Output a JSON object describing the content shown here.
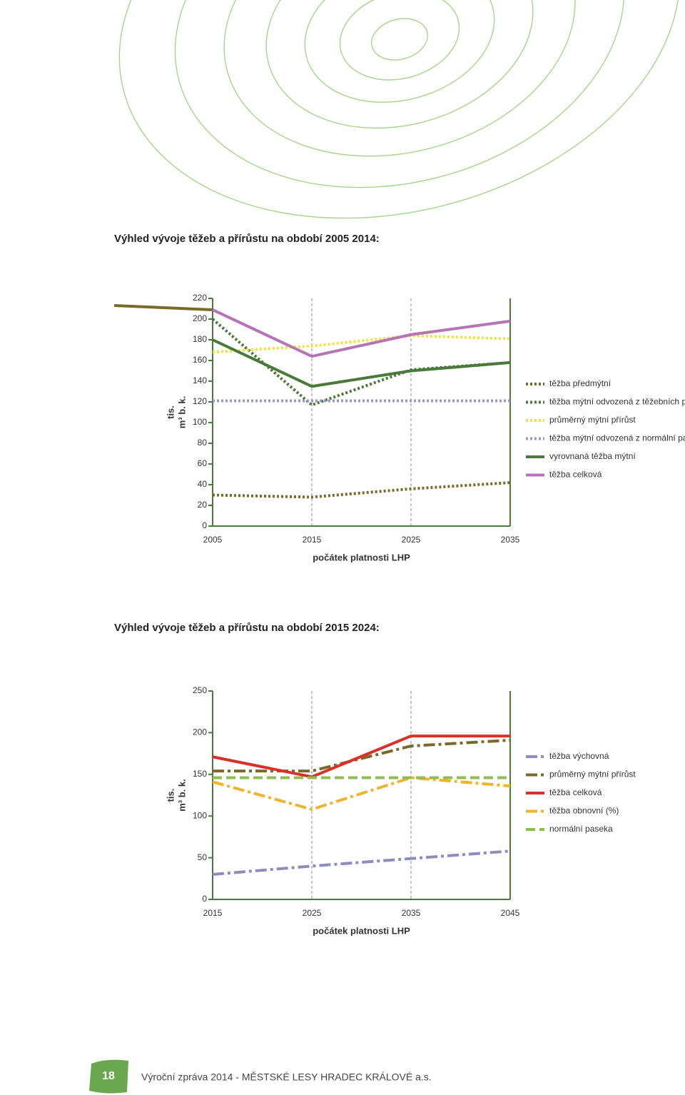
{
  "chart_data": [
    {
      "type": "line",
      "title": "Výhled vývoje těžeb a přírůstu na období 2005 2014:",
      "y_label": [
        "tis.",
        "m³ b. k."
      ],
      "x_label": "počátek platnosti LHP",
      "x": [
        2005,
        2015,
        2025,
        2035
      ],
      "xlim": [
        2005,
        2035
      ],
      "xticks": [
        2005,
        2015,
        2025,
        2035
      ],
      "ylim": [
        0,
        220
      ],
      "yticks": [
        0,
        20,
        40,
        60,
        80,
        100,
        120,
        140,
        160,
        180,
        200,
        220
      ],
      "grid": true,
      "series": [
        {
          "name": "těžba předmýtní",
          "color": "#7a6a2a",
          "line_style": "dotted",
          "values": [
            30,
            28,
            36,
            42
          ]
        },
        {
          "name": "těžba mýtní odvozená z těžebních procent",
          "color": "#4a7a3a",
          "line_style": "dotted",
          "values": [
            200,
            117,
            151,
            158
          ]
        },
        {
          "name": "průměrný mýtní přírůst",
          "color": "#f2e33a",
          "line_style": "dotted",
          "values": [
            168,
            174,
            184,
            181
          ]
        },
        {
          "name": "těžba mýtní odvozená z normální paseky",
          "color": "#9a96c8",
          "line_style": "dotted",
          "values": [
            121,
            121,
            121,
            121
          ]
        },
        {
          "name": "vyrovnaná těžba mýtní",
          "color": "#4a7a3a",
          "line_style": "solid",
          "values": [
            180,
            135,
            150,
            158
          ]
        },
        {
          "name": "těžba celková",
          "color": "#b574b5",
          "line_style": "solid",
          "values": [
            209,
            164,
            185,
            198
          ]
        }
      ]
    },
    {
      "type": "line",
      "title": "Výhled vývoje těžeb a přírůstu na období 2015 2024:",
      "y_label": [
        "tis.",
        "m³ b. k."
      ],
      "x_label": "počátek platnosti LHP",
      "x": [
        2015,
        2025,
        2035,
        2045
      ],
      "xlim": [
        2015,
        2045
      ],
      "xticks": [
        2015,
        2025,
        2035,
        2045
      ],
      "ylim": [
        0,
        250
      ],
      "yticks": [
        0,
        50,
        100,
        150,
        200,
        250
      ],
      "grid": true,
      "series": [
        {
          "name": "těžba výchovná",
          "color": "#8c8cc0",
          "line_style": "dashdot",
          "values": [
            30,
            40,
            49,
            58
          ]
        },
        {
          "name": "průměrný mýtní přírůst",
          "color": "#7a6a2a",
          "line_style": "dashdot",
          "values": [
            154,
            154,
            184,
            191
          ]
        },
        {
          "name": "těžba celková",
          "color": "#d9302a",
          "line_style": "solid",
          "values": [
            171,
            147,
            196,
            196
          ]
        },
        {
          "name": "těžba obnovní (%)",
          "color": "#f0b42a",
          "line_style": "dashdot",
          "values": [
            141,
            108,
            146,
            136
          ]
        },
        {
          "name": "normální paseka",
          "color": "#8cc04a",
          "line_style": "dashed",
          "values": [
            146,
            146,
            146,
            146
          ]
        }
      ]
    }
  ],
  "footer": {
    "page_number": "18",
    "text": "Výroční zpráva 2014 - MĚSTSKÉ LESY HRADEC KRÁLOVÉ a.s."
  }
}
